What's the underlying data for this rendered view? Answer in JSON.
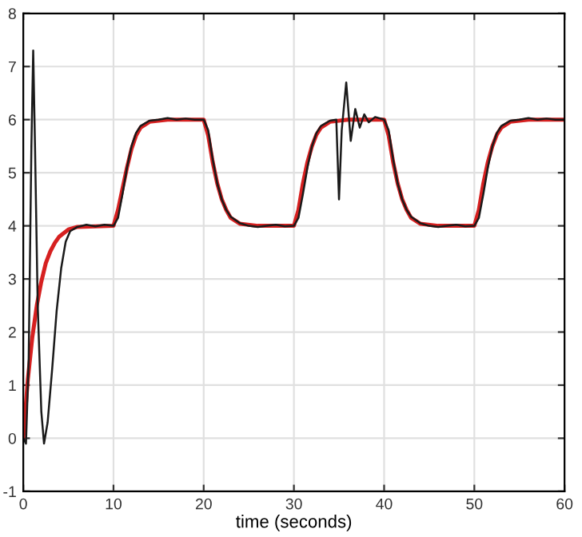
{
  "chart_data": {
    "type": "line",
    "xlabel": "time (seconds)",
    "xlim": [
      0,
      60
    ],
    "ylim": [
      -1,
      8
    ],
    "xticks": [
      0,
      10,
      20,
      30,
      40,
      50,
      60
    ],
    "yticks": [
      -1,
      0,
      1,
      2,
      3,
      4,
      5,
      6,
      7,
      8
    ],
    "grid": true,
    "series": [
      {
        "color": "#d62020",
        "x": [
          0,
          0.5,
          1,
          1.5,
          2,
          2.5,
          3,
          3.5,
          4,
          5,
          6,
          10,
          10.5,
          11,
          11.5,
          12,
          12.5,
          13,
          14,
          16,
          20,
          20.5,
          21,
          21.5,
          22,
          22.5,
          23,
          24,
          26,
          30,
          30.5,
          31,
          31.5,
          32,
          32.5,
          33,
          34,
          36,
          40,
          40.5,
          41,
          41.5,
          42,
          42.5,
          43,
          44,
          46,
          50,
          50.5,
          51,
          51.5,
          52,
          52.5,
          53,
          54,
          56,
          60
        ],
        "values": [
          0,
          1.1,
          1.9,
          2.5,
          2.95,
          3.3,
          3.52,
          3.68,
          3.8,
          3.93,
          3.98,
          4.0,
          4.3,
          4.7,
          5.1,
          5.45,
          5.7,
          5.85,
          5.96,
          6.0,
          6.0,
          5.7,
          5.2,
          4.8,
          4.5,
          4.3,
          4.15,
          4.04,
          4.0,
          4.0,
          4.3,
          4.8,
          5.2,
          5.5,
          5.72,
          5.85,
          5.96,
          6.0,
          6.0,
          5.7,
          5.2,
          4.8,
          4.5,
          4.3,
          4.15,
          4.04,
          4.0,
          4.0,
          4.3,
          4.8,
          5.2,
          5.5,
          5.72,
          5.85,
          5.96,
          6.0,
          6.0
        ]
      },
      {
        "color": "#1a1a1a",
        "x": [
          0,
          0.3,
          0.6,
          0.9,
          1.1,
          1.3,
          1.6,
          2.0,
          2.3,
          2.7,
          3.2,
          3.7,
          4.2,
          4.7,
          5.2,
          6,
          7,
          8,
          9,
          10,
          10.5,
          11,
          11.5,
          12,
          12.5,
          13,
          14,
          15,
          16,
          17,
          18,
          19,
          20,
          20.5,
          21,
          21.5,
          22,
          22.5,
          23,
          24,
          25,
          26,
          27,
          28,
          29,
          30,
          30.5,
          31,
          31.5,
          32,
          32.5,
          33,
          34,
          34.7,
          35.0,
          35.3,
          35.8,
          36.3,
          36.8,
          37.3,
          37.8,
          38.3,
          39,
          40,
          40.5,
          41,
          41.5,
          42,
          42.5,
          43,
          44,
          45,
          46,
          47,
          48,
          49,
          50,
          50.5,
          51,
          51.5,
          52,
          52.5,
          53,
          54,
          55,
          56,
          57,
          58,
          59,
          60
        ],
        "values": [
          0,
          -0.1,
          1.5,
          5.5,
          7.3,
          5.5,
          2.5,
          0.5,
          -0.1,
          0.3,
          1.3,
          2.4,
          3.2,
          3.7,
          3.9,
          3.98,
          4.02,
          3.99,
          4.02,
          4.0,
          4.15,
          4.6,
          5.1,
          5.5,
          5.75,
          5.88,
          5.98,
          6.0,
          6.03,
          6.0,
          6.02,
          6.0,
          6.0,
          5.8,
          5.25,
          4.8,
          4.5,
          4.3,
          4.17,
          4.05,
          4.0,
          3.98,
          4.0,
          4.02,
          3.99,
          4.0,
          4.15,
          4.6,
          5.1,
          5.5,
          5.75,
          5.88,
          5.98,
          6.0,
          4.5,
          5.8,
          6.7,
          5.6,
          6.2,
          5.85,
          6.1,
          5.95,
          6.05,
          6.0,
          5.8,
          5.25,
          4.8,
          4.5,
          4.3,
          4.17,
          4.05,
          4.0,
          3.98,
          4.0,
          4.02,
          3.99,
          4.0,
          4.15,
          4.6,
          5.1,
          5.5,
          5.75,
          5.88,
          5.98,
          6.0,
          6.03,
          6.0,
          6.02,
          6.0,
          6.0
        ]
      }
    ]
  }
}
